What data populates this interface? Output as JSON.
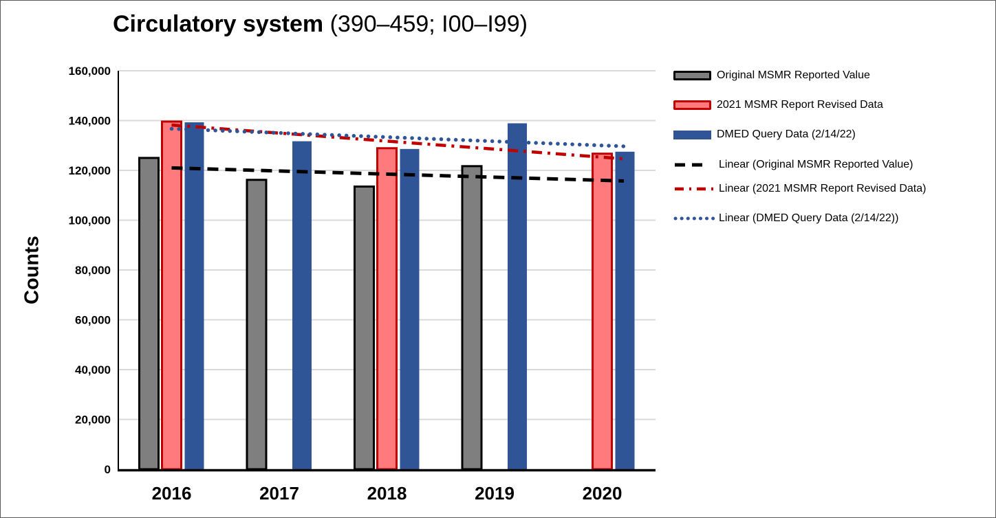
{
  "title": {
    "main": "Circulatory system",
    "suffix": " (390–459; I00–I99)"
  },
  "y_axis_label": "Counts",
  "legend": [
    {
      "label": "Original MSMR Reported Value",
      "swatch": "bar-gray"
    },
    {
      "label": "2021 MSMR Report Revised Data",
      "swatch": "bar-red"
    },
    {
      "label": "DMED Query Data (2/14/22)",
      "swatch": "bar-blue"
    },
    {
      "label": "Linear (Original MSMR Reported Value)",
      "swatch": "line-black-dashed"
    },
    {
      "label": "Linear (2021 MSMR Report Revised Data)",
      "swatch": "line-red-dash-dot"
    },
    {
      "label": "Linear (DMED Query Data (2/14/22))",
      "swatch": "line-blue-dotted"
    }
  ],
  "colors": {
    "gray_bar_fill": "#7F7F7F",
    "gray_bar_border": "#000000",
    "red_bar_fill": "#FF7A7D",
    "red_bar_border": "#C00000",
    "blue_bar_fill": "#2F5597",
    "gridline": "#D9D9D9",
    "axis": "#000000"
  },
  "chart_data": {
    "type": "bar",
    "title": "Circulatory system (390–459; I00–I99)",
    "xlabel": "",
    "ylabel": "Counts",
    "categories": [
      "2016",
      "2017",
      "2018",
      "2019",
      "2020"
    ],
    "series": [
      {
        "name": "Original MSMR Reported Value",
        "color": "#7F7F7F",
        "border": "#000000",
        "values": [
          125000,
          116200,
          113500,
          121700,
          null
        ]
      },
      {
        "name": "2021 MSMR Report Revised Data",
        "color": "#FF7A7D",
        "border": "#C00000",
        "values": [
          139600,
          null,
          128900,
          null,
          126700
        ]
      },
      {
        "name": "DMED Query Data (2/14/22)",
        "color": "#2F5597",
        "border": null,
        "values": [
          139300,
          131700,
          128600,
          138900,
          127500
        ]
      }
    ],
    "trendlines": [
      {
        "name": "Linear (Original MSMR Reported Value)",
        "color": "#000000",
        "style": "dashed",
        "start_value": 121000,
        "end_value": 116000
      },
      {
        "name": "Linear (2021 MSMR Report Revised Data)",
        "color": "#C00000",
        "style": "dash-dot",
        "start_value": 138200,
        "end_value": 125300
      },
      {
        "name": "Linear (DMED Query Data (2/14/22))",
        "color": "#2F5597",
        "style": "dotted",
        "start_value": 136700,
        "end_value": 130000
      }
    ],
    "ylim": [
      0,
      160000
    ],
    "ytick_step": 20000,
    "yticks": [
      "0",
      "20,000",
      "40,000",
      "60,000",
      "80,000",
      "100,000",
      "120,000",
      "140,000",
      "160,000"
    ],
    "grid": "horizontal",
    "legend_position": "right"
  }
}
